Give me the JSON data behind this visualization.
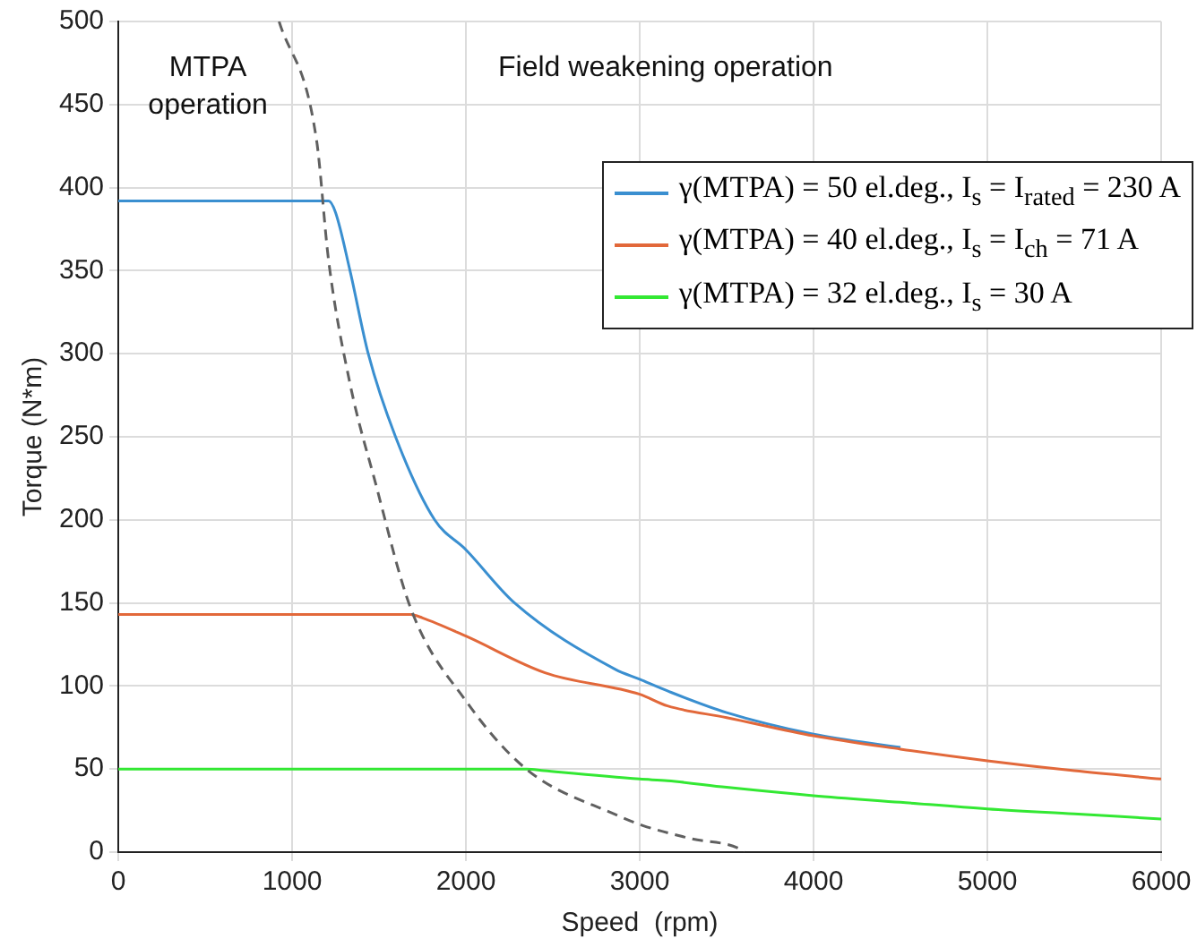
{
  "chart_data": {
    "type": "line",
    "xlabel": "Speed  (rpm)",
    "ylabel": "Torque (N*m)",
    "xlim": [
      0,
      6000
    ],
    "xticks": [
      0,
      1000,
      2000,
      3000,
      4000,
      5000,
      6000
    ],
    "ylim": [
      0,
      500
    ],
    "yticks": [
      0,
      50,
      100,
      150,
      200,
      250,
      300,
      350,
      400,
      450,
      500
    ],
    "grid": true,
    "legend": "top right",
    "marker": "none",
    "annotations": [
      "MTPA operation",
      "Field weakening operation"
    ],
    "series": [
      {
        "name": "γ(MTPA) = 50 el.deg., I$_{s}$ = I$_{rated}$ = 230 A",
        "color": "#3a8fd0",
        "x": [
          0,
          1210,
          1250,
          1333,
          1438,
          1595,
          1820,
          2000,
          2280,
          2860,
          3000,
          3160,
          3500,
          4000,
          4500
        ],
        "values": [
          392,
          392,
          385,
          350,
          300,
          250,
          200,
          182,
          150,
          110,
          104,
          97,
          84,
          71,
          63
        ]
      },
      {
        "name": "γ(MTPA) = 40 el.deg., I$_{s}$ = I$_{ch}$ = 71 A",
        "color": "#e2683a",
        "x": [
          0,
          1680,
          1750,
          2000,
          2455,
          3000,
          3160,
          3500,
          4000,
          4500,
          5000,
          5500,
          6000
        ],
        "values": [
          143,
          143,
          141,
          130,
          108,
          95,
          88,
          81,
          70,
          62,
          55,
          49,
          44
        ]
      },
      {
        "name": "γ(MTPA) = 32 el.deg., I$_{s}$ = 30 A",
        "color": "#33e833",
        "x": [
          0,
          2350,
          2450,
          3000,
          3160,
          3500,
          4000,
          4500,
          5000,
          5500,
          6000
        ],
        "values": [
          50,
          50,
          49,
          44,
          43,
          39,
          34,
          30,
          26,
          23,
          20
        ]
      },
      {
        "color": "#606060",
        "line_style": "dashed",
        "x": [
          925,
          1140,
          1210,
          1333,
          1475,
          1685,
          2000,
          2347,
          2874,
          3018,
          3300,
          3575,
          3600
        ],
        "values": [
          500,
          429,
          356,
          282,
          224,
          146,
          91,
          50,
          22,
          16,
          8,
          2,
          0
        ]
      }
    ]
  }
}
